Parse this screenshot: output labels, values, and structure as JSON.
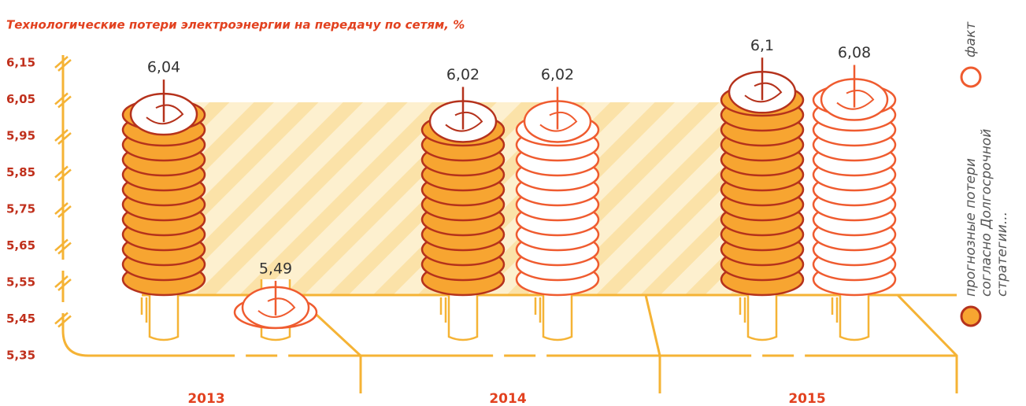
{
  "chart_data": {
    "type": "bar",
    "title": "Технологические потери электроэнергии на передачу по сетям, %",
    "categories": [
      "2013",
      "2014",
      "2015"
    ],
    "series": [
      {
        "name": "прогнозные потери согласно Долгосрочной стратегии...",
        "color": "#f7a531",
        "values": [
          6.04,
          6.02,
          6.1
        ],
        "value_labels": [
          "6,04",
          "6,02",
          "6,1"
        ]
      },
      {
        "name": "факт",
        "color": "#ffffff",
        "values": [
          5.49,
          6.02,
          6.08
        ],
        "value_labels": [
          "5,49",
          "6,02",
          "6,08"
        ]
      }
    ],
    "ylim": [
      5.35,
      6.15
    ],
    "yticks": [
      {
        "value": 5.35,
        "label": "5,35"
      },
      {
        "value": 5.45,
        "label": "5,45"
      },
      {
        "value": 5.55,
        "label": "5,55"
      },
      {
        "value": 5.65,
        "label": "5,65"
      },
      {
        "value": 5.75,
        "label": "5,75"
      },
      {
        "value": 5.85,
        "label": "5,85"
      },
      {
        "value": 5.95,
        "label": "5,95"
      },
      {
        "value": 6.05,
        "label": "6,05"
      },
      {
        "value": 6.15,
        "label": "6,15"
      }
    ]
  }
}
